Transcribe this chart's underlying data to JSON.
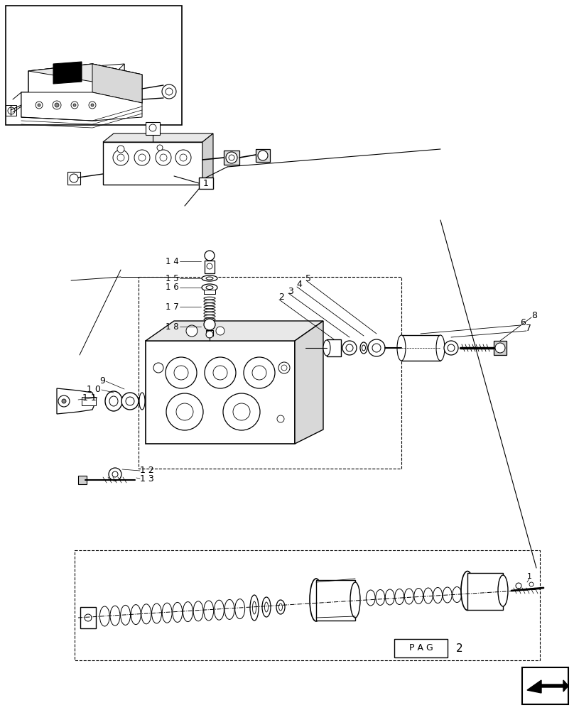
{
  "bg_color": "#ffffff",
  "line_color": "#000000",
  "fig_width": 8.08,
  "fig_height": 10.0,
  "pag_label": "P A G",
  "pag_number": "2"
}
